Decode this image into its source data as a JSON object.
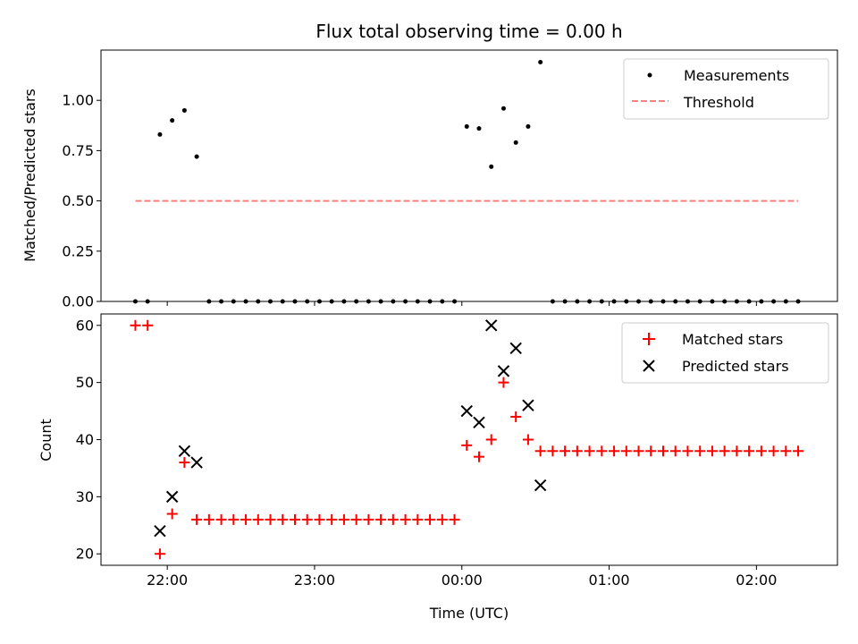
{
  "chart_data": [
    {
      "type": "scatter",
      "title": "Flux total observing time = 0.00 h",
      "xlabel": "",
      "ylabel": "Matched/Predicted stars",
      "xlim": [
        "21:33",
        "02:33"
      ],
      "ylim": [
        0,
        1.25
      ],
      "yticks": [
        "0.00",
        "0.25",
        "0.50",
        "0.75",
        "1.00"
      ],
      "grid": false,
      "legend_position": "top-right",
      "legend": [
        "Measurements",
        "Threshold"
      ],
      "series": [
        {
          "name": "Measurements",
          "marker": "dot",
          "color": "#000000",
          "x": [
            "21:47",
            "21:52",
            "21:57",
            "22:02",
            "22:07",
            "22:12",
            "22:17",
            "22:22",
            "22:27",
            "22:32",
            "22:37",
            "22:42",
            "22:47",
            "22:52",
            "22:57",
            "23:02",
            "23:07",
            "23:12",
            "23:17",
            "23:22",
            "23:27",
            "23:32",
            "23:37",
            "23:42",
            "23:47",
            "23:52",
            "23:57",
            "00:02",
            "00:07",
            "00:12",
            "00:17",
            "00:22",
            "00:27",
            "00:32",
            "00:37",
            "00:42",
            "00:47",
            "00:52",
            "00:57",
            "01:02",
            "01:07",
            "01:12",
            "01:17",
            "01:22",
            "01:27",
            "01:32",
            "01:37",
            "01:42",
            "01:47",
            "01:52",
            "01:57",
            "02:02",
            "02:07",
            "02:12",
            "02:17"
          ],
          "y": [
            0,
            0,
            0.83,
            0.9,
            0.95,
            0.72,
            0,
            0,
            0,
            0,
            0,
            0,
            0,
            0,
            0,
            0,
            0,
            0,
            0,
            0,
            0,
            0,
            0,
            0,
            0,
            0,
            0,
            0.87,
            0.86,
            0.67,
            0.96,
            0.79,
            0.87,
            1.19,
            0,
            0,
            0,
            0,
            0,
            0,
            0,
            0,
            0,
            0,
            0,
            0,
            0,
            0,
            0,
            0,
            0,
            0,
            0,
            0,
            0
          ],
          "skip": [
            2,
            3,
            4,
            5,
            6,
            7,
            8,
            9,
            10,
            11,
            12,
            13,
            14,
            15,
            16,
            17,
            18,
            19,
            20,
            21,
            22,
            23,
            24,
            25,
            26
          ]
        },
        {
          "name": "Threshold",
          "style": "dashed",
          "color": "#ff7f7f",
          "x": [
            "21:47",
            "02:17"
          ],
          "y": [
            0.5,
            0.5
          ]
        }
      ]
    },
    {
      "type": "scatter",
      "title": "",
      "xlabel": "Time (UTC)",
      "ylabel": "Count",
      "xlim": [
        "21:33",
        "02:33"
      ],
      "ylim": [
        18,
        62
      ],
      "xticks": [
        "22:00",
        "23:00",
        "00:00",
        "01:00",
        "02:00"
      ],
      "yticks": [
        "20",
        "30",
        "40",
        "50",
        "60"
      ],
      "grid": false,
      "legend_position": "top-right",
      "legend": [
        "Matched stars",
        "Predicted stars"
      ],
      "series": [
        {
          "name": "Matched stars",
          "marker": "plus",
          "color": "#ff0000",
          "x": [
            "21:47",
            "21:52",
            "21:57",
            "22:02",
            "22:07",
            "22:12",
            "22:17",
            "22:22",
            "22:27",
            "22:32",
            "22:37",
            "22:42",
            "22:47",
            "22:52",
            "22:57",
            "23:02",
            "23:07",
            "23:12",
            "23:17",
            "23:22",
            "23:27",
            "23:32",
            "23:37",
            "23:42",
            "23:47",
            "23:52",
            "23:57",
            "00:02",
            "00:07",
            "00:12",
            "00:17",
            "00:22",
            "00:27",
            "00:32",
            "00:37",
            "00:42",
            "00:47",
            "00:52",
            "00:57",
            "01:02",
            "01:07",
            "01:12",
            "01:17",
            "01:22",
            "01:27",
            "01:32",
            "01:37",
            "01:42",
            "01:47",
            "01:52",
            "01:57",
            "02:02",
            "02:07",
            "02:12",
            "02:17"
          ],
          "y": [
            60,
            60,
            20,
            27,
            36,
            26,
            26,
            26,
            26,
            26,
            26,
            26,
            26,
            26,
            26,
            26,
            26,
            26,
            26,
            26,
            26,
            26,
            26,
            26,
            26,
            26,
            26,
            39,
            37,
            40,
            50,
            44,
            40,
            38,
            38,
            38,
            38,
            38,
            38,
            38,
            38,
            38,
            38,
            38,
            38,
            38,
            38,
            38,
            38,
            38,
            38,
            38,
            38,
            38,
            38
          ]
        },
        {
          "name": "Predicted stars",
          "marker": "x",
          "color": "#000000",
          "x": [
            "21:57",
            "22:02",
            "22:07",
            "22:12",
            "00:02",
            "00:07",
            "00:12",
            "00:17",
            "00:22",
            "00:27",
            "00:32"
          ],
          "y": [
            24,
            30,
            38,
            36,
            45,
            43,
            60,
            52,
            56,
            46,
            32
          ]
        }
      ]
    }
  ]
}
